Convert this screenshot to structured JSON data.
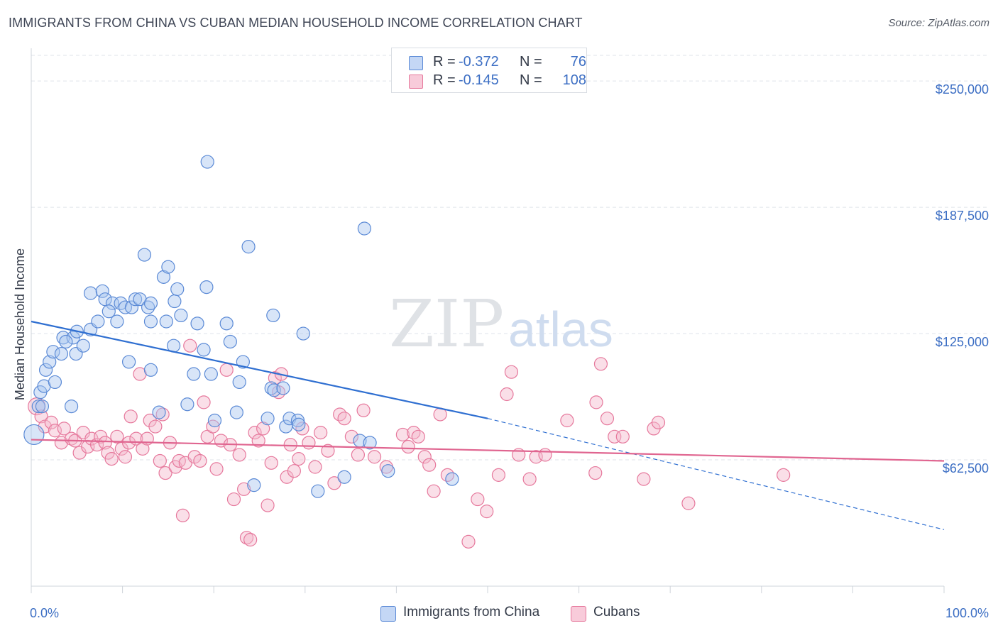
{
  "title": "IMMIGRANTS FROM CHINA VS CUBAN MEDIAN HOUSEHOLD INCOME CORRELATION CHART",
  "source": "Source: ZipAtlas.com",
  "watermark": {
    "zip": "ZIP",
    "atlas": "atlas"
  },
  "colors": {
    "china_fill": "#a9c5ef",
    "china_stroke": "#5b8ad6",
    "china_line": "#2f6fd1",
    "cuba_fill": "#f5b8cc",
    "cuba_stroke": "#e6789c",
    "cuba_line": "#e06590",
    "axis_text": "#3d6fc4",
    "grid": "#dfe3ea"
  },
  "legend_top": [
    {
      "swatch": "china",
      "r_label": "R =",
      "r_value": "-0.372",
      "n_label": "N =",
      "n_value": "76"
    },
    {
      "swatch": "cuba",
      "r_label": "R =",
      "r_value": "-0.145",
      "n_label": "N =",
      "n_value": "108"
    }
  ],
  "legend_bottom": [
    {
      "swatch": "china",
      "label": "Immigrants from China"
    },
    {
      "swatch": "cuba",
      "label": "Cubans"
    }
  ],
  "chart_data": {
    "type": "scatter",
    "title": "IMMIGRANTS FROM CHINA VS CUBAN MEDIAN HOUSEHOLD INCOME CORRELATION CHART",
    "xlabel": "",
    "ylabel": "Median Household Income",
    "xlim": [
      0,
      100
    ],
    "ylim": [
      0,
      262000
    ],
    "x_tick_labels": [
      "0.0%",
      "100.0%"
    ],
    "y_ticks": [
      62500,
      125000,
      187500,
      250000
    ],
    "y_tick_labels": [
      "$62,500",
      "$125,000",
      "$187,500",
      "$250,000"
    ],
    "grid": true,
    "legend_placement": "top-center",
    "series": [
      {
        "name": "Immigrants from China",
        "color": "#a9c5ef",
        "r": -0.372,
        "n": 76,
        "trend": {
          "x_solid": [
            0,
            50
          ],
          "y_solid": [
            131000,
            83000
          ],
          "x_dashed": [
            50,
            100
          ],
          "y_dashed": [
            83000,
            28000
          ]
        },
        "points": [
          [
            0.3,
            75000,
            14
          ],
          [
            0.8,
            89000,
            9
          ],
          [
            1.0,
            96000,
            9
          ],
          [
            1.4,
            99000,
            9
          ],
          [
            1.6,
            107000,
            9
          ],
          [
            2.0,
            111000,
            9
          ],
          [
            2.4,
            116000,
            9
          ],
          [
            3.3,
            115000,
            9
          ],
          [
            3.5,
            123000,
            9
          ],
          [
            4.6,
            123000,
            9
          ],
          [
            5.0,
            126000,
            9
          ],
          [
            4.4,
            89000,
            9
          ],
          [
            4.9,
            115000,
            9
          ],
          [
            5.7,
            119000,
            9
          ],
          [
            6.5,
            127000,
            9
          ],
          [
            7.3,
            131000,
            9
          ],
          [
            6.5,
            145000,
            9
          ],
          [
            7.8,
            146000,
            9
          ],
          [
            8.1,
            142000,
            9
          ],
          [
            8.9,
            140000,
            9
          ],
          [
            9.4,
            131000,
            9
          ],
          [
            9.8,
            140000,
            9
          ],
          [
            10.3,
            138000,
            9
          ],
          [
            11.0,
            138000,
            9
          ],
          [
            10.7,
            111000,
            9
          ],
          [
            11.4,
            142000,
            9
          ],
          [
            11.9,
            142000,
            9
          ],
          [
            12.4,
            164000,
            9
          ],
          [
            12.8,
            138000,
            9
          ],
          [
            13.1,
            140000,
            9
          ],
          [
            13.1,
            131000,
            9
          ],
          [
            13.1,
            107000,
            9
          ],
          [
            14.0,
            86000,
            9
          ],
          [
            14.5,
            153000,
            9
          ],
          [
            14.8,
            131000,
            9
          ],
          [
            15.0,
            158000,
            9
          ],
          [
            15.6,
            119000,
            9
          ],
          [
            15.7,
            141000,
            9
          ],
          [
            16.0,
            147000,
            9
          ],
          [
            16.4,
            134000,
            9
          ],
          [
            17.1,
            90000,
            9
          ],
          [
            17.8,
            105000,
            9
          ],
          [
            18.2,
            130000,
            9
          ],
          [
            18.9,
            117000,
            9
          ],
          [
            19.2,
            148000,
            9
          ],
          [
            19.7,
            105000,
            9
          ],
          [
            20.1,
            82000,
            9
          ],
          [
            19.3,
            210000,
            9
          ],
          [
            21.4,
            130000,
            9
          ],
          [
            21.8,
            121000,
            9
          ],
          [
            22.5,
            86000,
            9
          ],
          [
            22.8,
            101000,
            9
          ],
          [
            23.2,
            111000,
            9
          ],
          [
            23.8,
            168000,
            9
          ],
          [
            24.4,
            50000,
            9
          ],
          [
            25.9,
            83000,
            9
          ],
          [
            26.3,
            98000,
            9
          ],
          [
            26.5,
            134000,
            9
          ],
          [
            26.6,
            97000,
            9
          ],
          [
            27.6,
            98000,
            9
          ],
          [
            27.9,
            79000,
            9
          ],
          [
            28.3,
            83000,
            9
          ],
          [
            29.2,
            82000,
            9
          ],
          [
            29.3,
            80000,
            9
          ],
          [
            29.8,
            125000,
            9
          ],
          [
            31.4,
            47000,
            9
          ],
          [
            34.3,
            54000,
            9
          ],
          [
            36.0,
            72000,
            9
          ],
          [
            36.5,
            177000,
            9
          ],
          [
            37.1,
            71000,
            9
          ],
          [
            39.1,
            57000,
            9
          ],
          [
            46.1,
            53000,
            9
          ],
          [
            1.2,
            89000,
            9
          ],
          [
            2.6,
            101000,
            9
          ],
          [
            3.8,
            121000,
            9
          ],
          [
            8.5,
            136000,
            9
          ]
        ]
      },
      {
        "name": "Cubans",
        "color": "#f5b8cc",
        "r": -0.145,
        "n": 108,
        "trend": {
          "x_solid": [
            0,
            100
          ],
          "y_solid": [
            72500,
            62000
          ]
        },
        "points": [
          [
            0.6,
            89000,
            12
          ],
          [
            1.1,
            84000,
            9
          ],
          [
            1.5,
            79000,
            9
          ],
          [
            2.2,
            81000,
            9
          ],
          [
            2.6,
            77000,
            9
          ],
          [
            3.3,
            71000,
            9
          ],
          [
            3.6,
            78000,
            9
          ],
          [
            4.4,
            73000,
            9
          ],
          [
            4.8,
            72000,
            9
          ],
          [
            5.3,
            66000,
            9
          ],
          [
            5.7,
            76000,
            9
          ],
          [
            6.2,
            69000,
            9
          ],
          [
            6.6,
            73000,
            9
          ],
          [
            7.2,
            70000,
            9
          ],
          [
            7.6,
            74000,
            9
          ],
          [
            8.1,
            71000,
            9
          ],
          [
            8.4,
            66000,
            9
          ],
          [
            8.8,
            63000,
            9
          ],
          [
            9.4,
            74000,
            9
          ],
          [
            9.9,
            68000,
            9
          ],
          [
            10.3,
            64000,
            9
          ],
          [
            10.7,
            71000,
            9
          ],
          [
            10.9,
            84000,
            9
          ],
          [
            11.5,
            73000,
            9
          ],
          [
            11.9,
            105000,
            9
          ],
          [
            12.2,
            68000,
            9
          ],
          [
            12.7,
            73000,
            9
          ],
          [
            13.0,
            82000,
            9
          ],
          [
            13.6,
            79000,
            9
          ],
          [
            14.1,
            62000,
            9
          ],
          [
            14.4,
            85000,
            9
          ],
          [
            14.7,
            56000,
            9
          ],
          [
            15.2,
            71000,
            9
          ],
          [
            15.8,
            59000,
            9
          ],
          [
            16.2,
            62000,
            9
          ],
          [
            16.6,
            35000,
            9
          ],
          [
            16.9,
            61000,
            9
          ],
          [
            17.4,
            119000,
            9
          ],
          [
            17.9,
            64000,
            9
          ],
          [
            18.5,
            62000,
            9
          ],
          [
            18.9,
            91000,
            9
          ],
          [
            19.3,
            74000,
            9
          ],
          [
            19.9,
            79000,
            9
          ],
          [
            20.3,
            58000,
            9
          ],
          [
            20.8,
            72000,
            9
          ],
          [
            21.4,
            107000,
            9
          ],
          [
            21.8,
            70000,
            9
          ],
          [
            22.2,
            43000,
            9
          ],
          [
            22.8,
            65000,
            9
          ],
          [
            23.3,
            48000,
            9
          ],
          [
            23.6,
            24000,
            9
          ],
          [
            24.0,
            23000,
            9
          ],
          [
            24.5,
            76000,
            9
          ],
          [
            24.9,
            72000,
            9
          ],
          [
            25.4,
            78000,
            9
          ],
          [
            25.9,
            40000,
            9
          ],
          [
            26.3,
            61000,
            9
          ],
          [
            26.7,
            103000,
            9
          ],
          [
            27.1,
            96000,
            9
          ],
          [
            27.4,
            105000,
            9
          ],
          [
            28.0,
            54000,
            9
          ],
          [
            28.4,
            70000,
            9
          ],
          [
            28.8,
            57000,
            9
          ],
          [
            29.3,
            63000,
            9
          ],
          [
            29.7,
            78000,
            9
          ],
          [
            30.4,
            71000,
            9
          ],
          [
            31.1,
            59000,
            9
          ],
          [
            31.7,
            76000,
            9
          ],
          [
            32.5,
            67000,
            9
          ],
          [
            33.2,
            51000,
            9
          ],
          [
            33.8,
            85000,
            9
          ],
          [
            34.3,
            83000,
            9
          ],
          [
            35.1,
            74000,
            9
          ],
          [
            35.8,
            65000,
            9
          ],
          [
            36.4,
            87000,
            9
          ],
          [
            37.6,
            64000,
            9
          ],
          [
            38.9,
            59000,
            9
          ],
          [
            40.7,
            75000,
            9
          ],
          [
            41.3,
            69000,
            9
          ],
          [
            41.9,
            76000,
            9
          ],
          [
            42.4,
            74000,
            9
          ],
          [
            43.1,
            64000,
            9
          ],
          [
            43.6,
            60000,
            9
          ],
          [
            44.1,
            47000,
            9
          ],
          [
            44.8,
            85000,
            9
          ],
          [
            45.6,
            55000,
            9
          ],
          [
            47.9,
            22000,
            9
          ],
          [
            48.9,
            43000,
            9
          ],
          [
            49.9,
            37000,
            9
          ],
          [
            51.2,
            55000,
            9
          ],
          [
            52.1,
            95000,
            9
          ],
          [
            52.6,
            106000,
            9
          ],
          [
            53.4,
            65000,
            9
          ],
          [
            54.6,
            53000,
            9
          ],
          [
            55.3,
            64000,
            9
          ],
          [
            56.3,
            65000,
            9
          ],
          [
            58.7,
            82000,
            9
          ],
          [
            61.8,
            56000,
            9
          ],
          [
            61.9,
            91000,
            9
          ],
          [
            62.4,
            110000,
            9
          ],
          [
            63.1,
            83000,
            9
          ],
          [
            63.9,
            74000,
            9
          ],
          [
            64.8,
            74000,
            9
          ],
          [
            67.1,
            53000,
            9
          ],
          [
            68.2,
            78000,
            9
          ],
          [
            68.7,
            81000,
            9
          ],
          [
            72.0,
            41000,
            9
          ],
          [
            82.4,
            55000,
            9
          ]
        ]
      }
    ]
  }
}
